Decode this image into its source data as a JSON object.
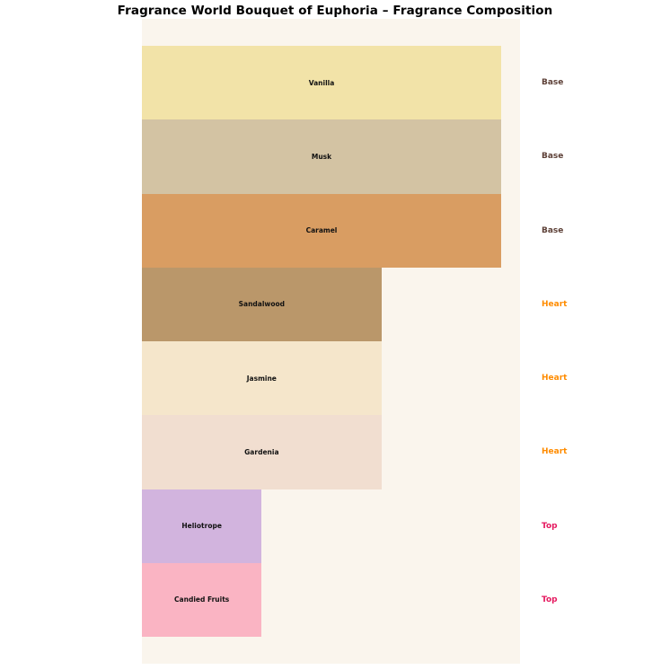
{
  "title": "Fragrance World Bouquet of Euphoria – Fragrance Composition",
  "chart_data": {
    "type": "bar",
    "orientation": "horizontal",
    "title": "Fragrance World Bouquet of Euphoria – Fragrance Composition",
    "categories": [
      "Vanilla",
      "Musk",
      "Caramel",
      "Sandalwood",
      "Jasmine",
      "Gardenia",
      "Heliotrope",
      "Candied Fruits"
    ],
    "values": [
      3,
      3,
      3,
      2,
      2,
      2,
      1,
      1
    ],
    "right_labels": [
      "Base",
      "Base",
      "Base",
      "Heart",
      "Heart",
      "Heart",
      "Top",
      "Top"
    ],
    "bar_colors": [
      "#f2e3a8",
      "#d3c3a3",
      "#d99d62",
      "#ba976a",
      "#f5e6cb",
      "#f1ded0",
      "#d2b4de",
      "#fab4c3"
    ],
    "label_colors": {
      "Base": "#5d4037",
      "Heart": "#ff8c00",
      "Top": "#e5195f"
    },
    "xlim": [
      0,
      3.16
    ],
    "axes_visible": false,
    "grid": false,
    "legend_position": "none",
    "plot_bg": "#faf5ed",
    "figure_bg": "#ffffff"
  }
}
